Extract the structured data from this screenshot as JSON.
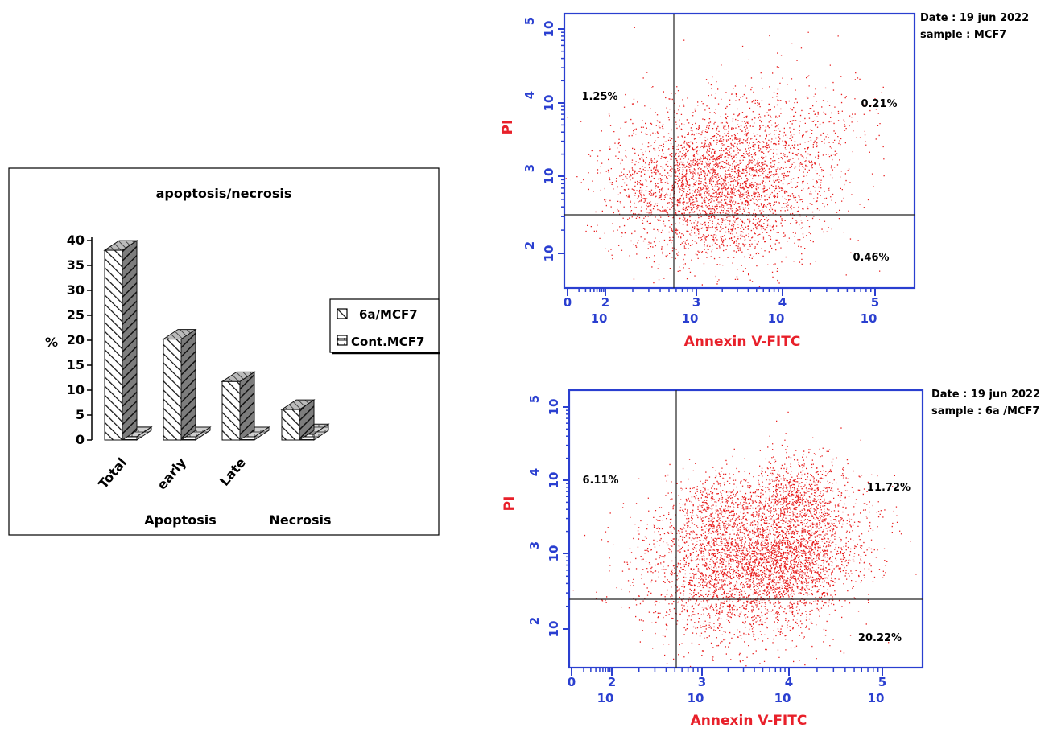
{
  "colors": {
    "axis_blue": "#2a3fd0",
    "label_red": "#e8202a",
    "dot_red": "#e81c1c",
    "frame": "#000000",
    "bar_front": "#ffffff",
    "bar_side": "#7d7d7d"
  },
  "chart_data": [
    {
      "type": "bar",
      "title": "apoptosis/necrosis",
      "ylabel": "%",
      "ylim": [
        0,
        40
      ],
      "yticks": [
        "0",
        "5",
        "10",
        "15",
        "20",
        "25",
        "30",
        "35",
        "40"
      ],
      "categories": [
        "Total",
        "early",
        "Late",
        ""
      ],
      "group_labels": [
        "Apoptosis",
        "Necrosis"
      ],
      "legend_position": "right",
      "three_d": true,
      "series": [
        {
          "name": "6a/MCF7",
          "values": [
            38.05,
            20.22,
            11.72,
            6.11
          ],
          "pattern": "dark-hatch"
        },
        {
          "name": "Cont.MCF7",
          "values": [
            0.67,
            0.46,
            0.21,
            1.25
          ],
          "pattern": "light-bricks"
        }
      ]
    },
    {
      "type": "scatter",
      "xlabel": "Annexin V-FITC",
      "ylabel": "PI",
      "x_scale": "log",
      "y_scale": "log",
      "xlim": [
        1,
        1000000
      ],
      "ylim": [
        1,
        1000000
      ],
      "x_ticks": [
        {
          "base": "",
          "exp": "0"
        },
        {
          "base": "10",
          "exp": "2"
        },
        {
          "base": "10",
          "exp": "3"
        },
        {
          "base": "10",
          "exp": "4"
        },
        {
          "base": "10",
          "exp": "5"
        }
      ],
      "y_ticks": [
        {
          "base": "10",
          "exp": "2"
        },
        {
          "base": "10",
          "exp": "3"
        },
        {
          "base": "10",
          "exp": "4"
        },
        {
          "base": "10",
          "exp": "5"
        }
      ],
      "header": {
        "date": "Date : 19 jun 2022",
        "sample": "sample : MCF7"
      },
      "quadrants": {
        "upper_left": "1.25%",
        "upper_right": "0.21%",
        "lower_right": "0.46%"
      },
      "density": [
        {
          "x": 150,
          "y": 80,
          "spread": 0.55,
          "weight": 2600
        },
        {
          "x": 600,
          "y": 150,
          "spread": 0.55,
          "weight": 900
        },
        {
          "x": 3000,
          "y": 600,
          "spread": 0.35,
          "weight": 150
        }
      ]
    },
    {
      "type": "scatter",
      "xlabel": "Annexin V-FITC",
      "ylabel": "PI",
      "x_scale": "log",
      "y_scale": "log",
      "xlim": [
        1,
        1000000
      ],
      "ylim": [
        1,
        1000000
      ],
      "x_ticks": [
        {
          "base": "",
          "exp": "0"
        },
        {
          "base": "10",
          "exp": "2"
        },
        {
          "base": "10",
          "exp": "3"
        },
        {
          "base": "10",
          "exp": "4"
        },
        {
          "base": "10",
          "exp": "5"
        }
      ],
      "y_ticks": [
        {
          "base": "10",
          "exp": "2"
        },
        {
          "base": "10",
          "exp": "3"
        },
        {
          "base": "10",
          "exp": "4"
        },
        {
          "base": "10",
          "exp": "5"
        }
      ],
      "header": {
        "date": "Date : 19 jun 2022",
        "sample": "sample :  6a /MCF7"
      },
      "quadrants": {
        "upper_left": "6.11%",
        "upper_right": "11.72%",
        "lower_right": "20.22%"
      },
      "density": [
        {
          "x": 250,
          "y": 70,
          "spread": 0.55,
          "weight": 2300
        },
        {
          "x": 1100,
          "y": 100,
          "spread": 0.4,
          "weight": 1500
        },
        {
          "x": 1300,
          "y": 700,
          "spread": 0.3,
          "weight": 700
        },
        {
          "x": 180,
          "y": 500,
          "spread": 0.25,
          "weight": 350
        },
        {
          "x": 3000,
          "y": 300,
          "spread": 0.4,
          "weight": 300
        }
      ]
    }
  ]
}
